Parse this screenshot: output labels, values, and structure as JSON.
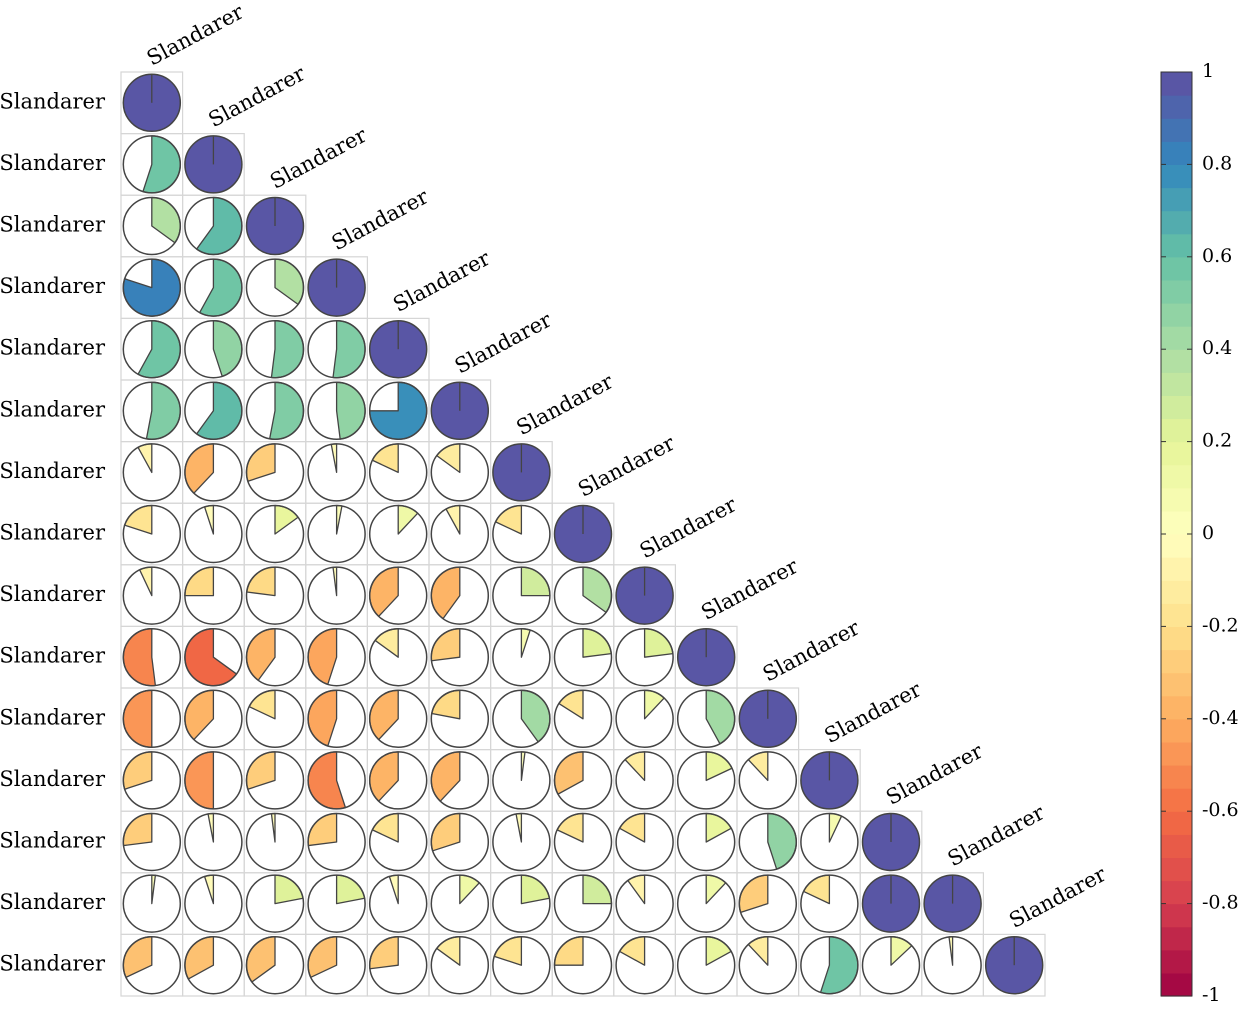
{
  "chart_data": {
    "type": "heatmap",
    "subtype": "correlation-pie-lower-triangle",
    "row_labels": [
      "Slandarer",
      "Slandarer",
      "Slandarer",
      "Slandarer",
      "Slandarer",
      "Slandarer",
      "Slandarer",
      "Slandarer",
      "Slandarer",
      "Slandarer",
      "Slandarer",
      "Slandarer",
      "Slandarer",
      "Slandarer",
      "Slandarer"
    ],
    "col_labels": [
      "Slandarer",
      "Slandarer",
      "Slandarer",
      "Slandarer",
      "Slandarer",
      "Slandarer",
      "Slandarer",
      "Slandarer",
      "Slandarer",
      "Slandarer",
      "Slandarer",
      "Slandarer",
      "Slandarer",
      "Slandarer",
      "Slandarer"
    ],
    "matrix": [
      [
        1.0
      ],
      [
        0.55,
        1.0
      ],
      [
        0.35,
        0.6,
        1.0
      ],
      [
        0.8,
        0.58,
        0.35,
        1.0
      ],
      [
        0.58,
        0.45,
        0.52,
        0.52,
        1.0
      ],
      [
        0.53,
        0.6,
        0.53,
        0.48,
        0.75,
        1.0
      ],
      [
        -0.08,
        -0.38,
        -0.3,
        -0.03,
        -0.18,
        -0.15,
        1.0
      ],
      [
        -0.2,
        -0.05,
        0.15,
        0.03,
        0.12,
        -0.08,
        -0.18,
        1.0
      ],
      [
        -0.07,
        -0.25,
        -0.23,
        -0.02,
        -0.38,
        -0.4,
        0.25,
        0.35,
        1.0
      ],
      [
        -0.52,
        -0.65,
        -0.4,
        -0.45,
        -0.15,
        -0.27,
        0.05,
        0.23,
        0.23,
        1.0
      ],
      [
        -0.5,
        -0.38,
        -0.18,
        -0.45,
        -0.38,
        -0.22,
        0.4,
        -0.16,
        0.12,
        0.42,
        1.0
      ],
      [
        -0.3,
        -0.5,
        -0.3,
        -0.55,
        -0.38,
        -0.38,
        0.02,
        -0.33,
        -0.12,
        0.18,
        -0.12,
        1.0
      ],
      [
        -0.27,
        -0.03,
        -0.02,
        -0.27,
        -0.18,
        -0.3,
        -0.03,
        -0.18,
        -0.17,
        0.17,
        0.45,
        0.07,
        1.0
      ],
      [
        0.02,
        -0.05,
        0.22,
        0.22,
        -0.05,
        0.12,
        0.22,
        0.25,
        -0.1,
        0.12,
        -0.3,
        -0.18,
        1.0,
        1.0
      ],
      [
        -0.32,
        -0.33,
        -0.35,
        -0.32,
        -0.27,
        -0.15,
        -0.2,
        -0.25,
        -0.17,
        0.17,
        -0.12,
        0.55,
        0.13,
        -0.02,
        1.0
      ]
    ],
    "colorbar": {
      "range": [
        -1,
        1
      ],
      "ticks": [
        1,
        0.8,
        0.6,
        0.4,
        0.2,
        0,
        -0.2,
        -0.4,
        -0.6,
        -0.8,
        -1
      ],
      "colormap": "Spectral",
      "levels": 40
    }
  }
}
